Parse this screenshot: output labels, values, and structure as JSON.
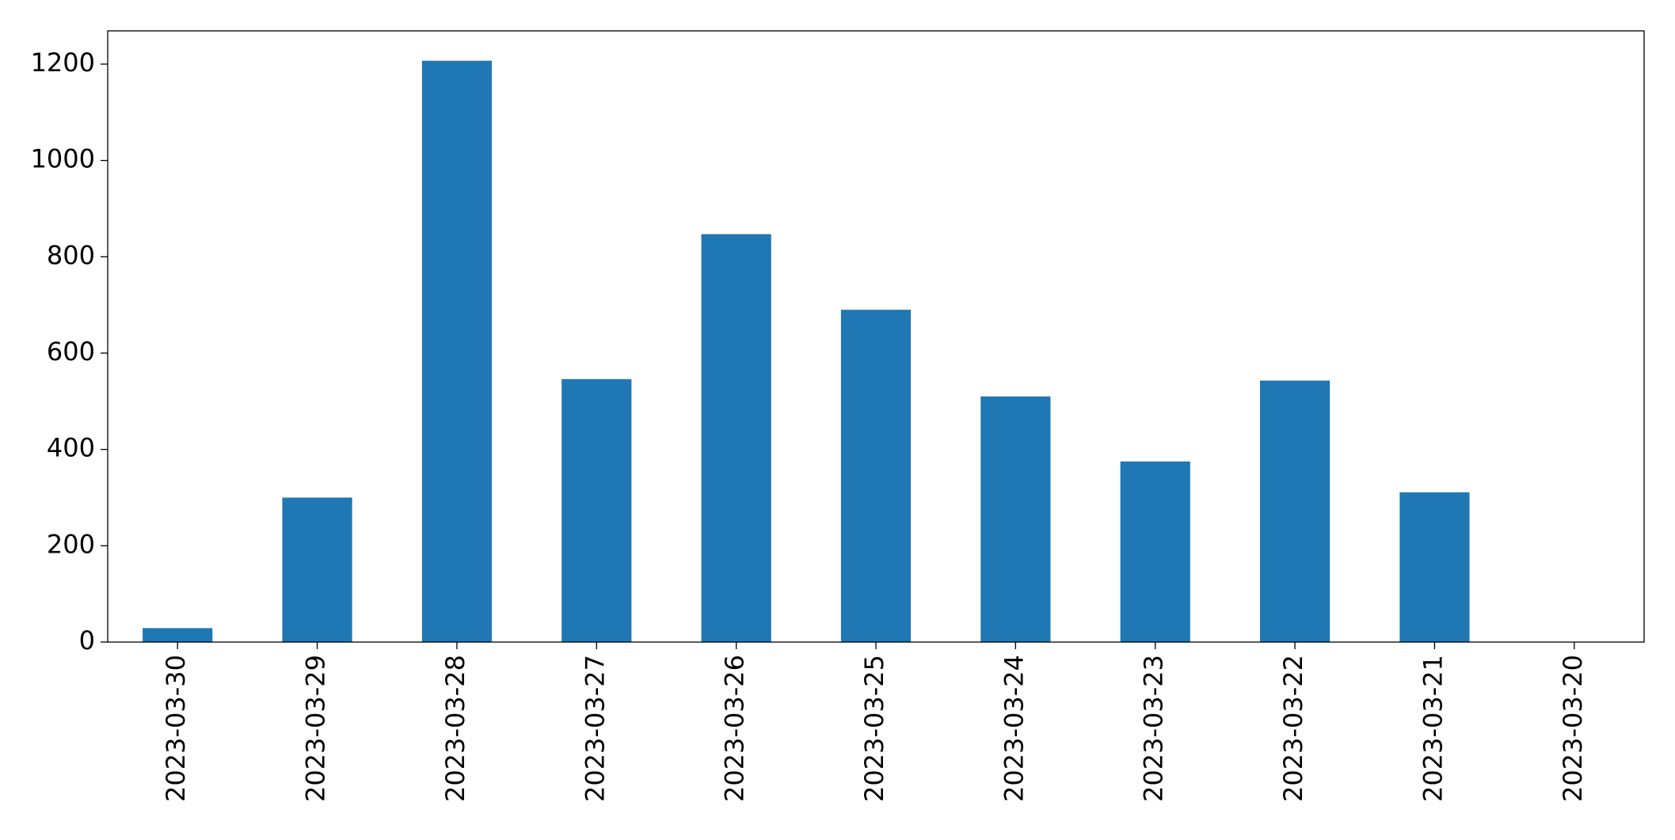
{
  "chart_data": {
    "type": "bar",
    "categories": [
      "2023-03-30",
      "2023-03-29",
      "2023-03-28",
      "2023-03-27",
      "2023-03-26",
      "2023-03-25",
      "2023-03-24",
      "2023-03-23",
      "2023-03-22",
      "2023-03-21",
      "2023-03-20"
    ],
    "values": [
      29,
      300,
      1207,
      546,
      847,
      690,
      510,
      375,
      543,
      311,
      0
    ],
    "color": "#1f77b4",
    "ylim": [
      0,
      1269
    ],
    "yticks": [
      0,
      200,
      400,
      600,
      800,
      1000,
      1200
    ],
    "grid": false
  }
}
